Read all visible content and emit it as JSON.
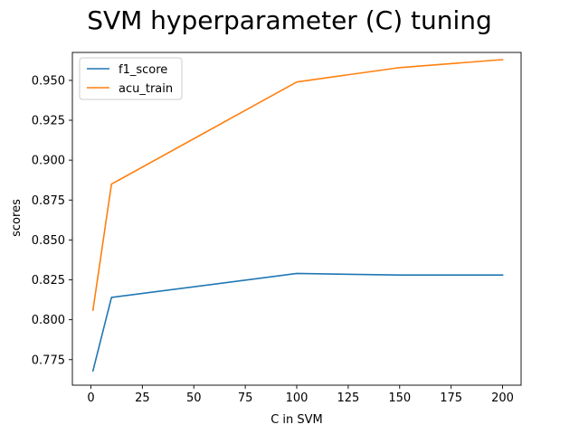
{
  "chart_data": {
    "type": "line",
    "title": "SVM hyperparameter (C) tuning",
    "xlabel": "C in SVM",
    "ylabel": "scores",
    "xlim": [
      -9,
      209
    ],
    "ylim": [
      0.759,
      0.9675
    ],
    "x_ticks": [
      0,
      25,
      50,
      75,
      100,
      125,
      150,
      175,
      200
    ],
    "y_ticks": [
      0.775,
      0.8,
      0.825,
      0.85,
      0.875,
      0.9,
      0.925,
      0.95
    ],
    "x_tick_labels": [
      "0",
      "25",
      "50",
      "75",
      "100",
      "125",
      "150",
      "175",
      "200"
    ],
    "y_tick_labels": [
      "0.775",
      "0.800",
      "0.825",
      "0.850",
      "0.875",
      "0.900",
      "0.925",
      "0.950"
    ],
    "grid": false,
    "legend_position": "top-left",
    "series": [
      {
        "name": "f1_score",
        "color": "#1f77b4",
        "x": [
          1,
          10,
          100,
          150,
          200
        ],
        "y": [
          0.768,
          0.814,
          0.829,
          0.828,
          0.828
        ]
      },
      {
        "name": "acu_train",
        "color": "#ff7f0e",
        "x": [
          1,
          10,
          100,
          150,
          200
        ],
        "y": [
          0.806,
          0.885,
          0.949,
          0.958,
          0.963
        ]
      }
    ]
  }
}
